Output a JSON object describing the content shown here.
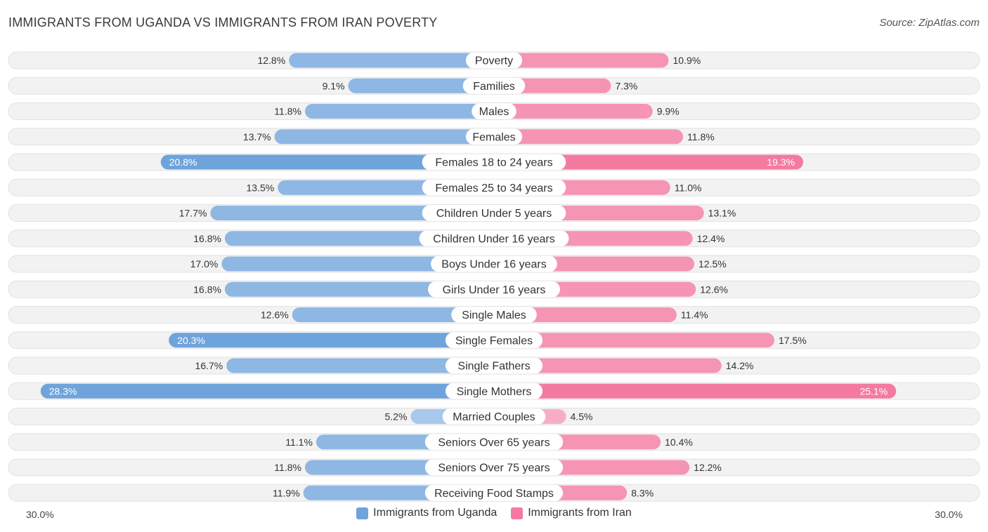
{
  "title": "IMMIGRANTS FROM UGANDA VS IMMIGRANTS FROM IRAN POVERTY",
  "source": "Source: ZipAtlas.com",
  "colors": {
    "left": "#6fa3dc",
    "left_light": "#a8c8ec",
    "right": "#f47aa0",
    "right_light": "#f7aec4",
    "row_bg": "#f2f2f2",
    "row_border": "#e2e2e2"
  },
  "axis": {
    "left_label": "30.0%",
    "right_label": "30.0%"
  },
  "legend": [
    {
      "label": "Immigrants from Uganda",
      "color": "#6fa3dc"
    },
    {
      "label": "Immigrants from Iran",
      "color": "#f47aa0"
    }
  ],
  "chart_data": {
    "type": "bar",
    "orientation": "diverging-horizontal",
    "title": "IMMIGRANTS FROM UGANDA VS IMMIGRANTS FROM IRAN POVERTY",
    "xlim": [
      -30,
      30
    ],
    "unit": "%",
    "categories": [
      "Poverty",
      "Families",
      "Males",
      "Females",
      "Females 18 to 24 years",
      "Females 25 to 34 years",
      "Children Under 5 years",
      "Children Under 16 years",
      "Boys Under 16 years",
      "Girls Under 16 years",
      "Single Males",
      "Single Females",
      "Single Fathers",
      "Single Mothers",
      "Married Couples",
      "Seniors Over 65 years",
      "Seniors Over 75 years",
      "Receiving Food Stamps"
    ],
    "series": [
      {
        "name": "Immigrants from Uganda",
        "values": [
          12.8,
          9.1,
          11.8,
          13.7,
          20.8,
          13.5,
          17.7,
          16.8,
          17.0,
          16.8,
          12.6,
          20.3,
          16.7,
          28.3,
          5.2,
          11.1,
          11.8,
          11.9
        ],
        "labels": [
          "12.8%",
          "9.1%",
          "11.8%",
          "13.7%",
          "20.8%",
          "13.5%",
          "17.7%",
          "16.8%",
          "17.0%",
          "16.8%",
          "12.6%",
          "20.3%",
          "16.7%",
          "28.3%",
          "5.2%",
          "11.1%",
          "11.8%",
          "11.9%"
        ]
      },
      {
        "name": "Immigrants from Iran",
        "values": [
          10.9,
          7.3,
          9.9,
          11.8,
          19.3,
          11.0,
          13.1,
          12.4,
          12.5,
          12.6,
          11.4,
          17.5,
          14.2,
          25.1,
          4.5,
          10.4,
          12.2,
          8.3
        ],
        "labels": [
          "10.9%",
          "7.3%",
          "9.9%",
          "11.8%",
          "19.3%",
          "11.0%",
          "13.1%",
          "12.4%",
          "12.5%",
          "12.6%",
          "11.4%",
          "17.5%",
          "14.2%",
          "25.1%",
          "4.5%",
          "10.4%",
          "12.2%",
          "8.3%"
        ]
      }
    ]
  }
}
